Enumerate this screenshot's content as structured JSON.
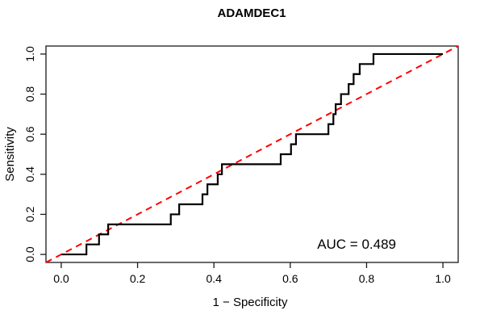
{
  "window": {
    "background": "#ffffff"
  },
  "chart_data": {
    "type": "line",
    "subtype": "roc-step-curve",
    "title": "ADAMDEC1",
    "xlabel": "1 − Specificity",
    "ylabel": "Sensitivity",
    "annotation": "AUC = 0.489",
    "auc": 0.489,
    "xlim": [
      0,
      1
    ],
    "ylim": [
      0,
      1
    ],
    "x_ticks": [
      0.0,
      0.2,
      0.4,
      0.6,
      0.8,
      1.0
    ],
    "x_tick_labels": [
      "0.0",
      "0.2",
      "0.4",
      "0.6",
      "0.8",
      "1.0"
    ],
    "y_ticks": [
      0.0,
      0.2,
      0.4,
      0.6,
      0.8,
      1.0
    ],
    "y_tick_labels": [
      "0.0",
      "0.2",
      "0.4",
      "0.6",
      "0.8",
      "1.0"
    ],
    "grid": false,
    "legend": null,
    "series": [
      {
        "name": "ROC curve",
        "draw": "step",
        "color": "#000000",
        "stroke_width": 2.2,
        "dash": "solid",
        "points": [
          [
            0.0,
            0.0
          ],
          [
            0.066,
            0.05
          ],
          [
            0.099,
            0.1
          ],
          [
            0.123,
            0.15
          ],
          [
            0.287,
            0.2
          ],
          [
            0.309,
            0.25
          ],
          [
            0.37,
            0.3
          ],
          [
            0.383,
            0.35
          ],
          [
            0.41,
            0.4
          ],
          [
            0.421,
            0.45
          ],
          [
            0.575,
            0.5
          ],
          [
            0.602,
            0.55
          ],
          [
            0.615,
            0.6
          ],
          [
            0.7,
            0.65
          ],
          [
            0.713,
            0.7
          ],
          [
            0.719,
            0.75
          ],
          [
            0.733,
            0.8
          ],
          [
            0.753,
            0.85
          ],
          [
            0.766,
            0.9
          ],
          [
            0.782,
            0.95
          ],
          [
            0.818,
            1.0
          ],
          [
            1.0,
            1.0
          ]
        ]
      },
      {
        "name": "Reference diagonal",
        "draw": "line",
        "color": "#ff0000",
        "stroke_width": 2,
        "dash": "dashed",
        "points": [
          [
            0,
            0
          ],
          [
            1,
            1
          ]
        ]
      }
    ]
  }
}
